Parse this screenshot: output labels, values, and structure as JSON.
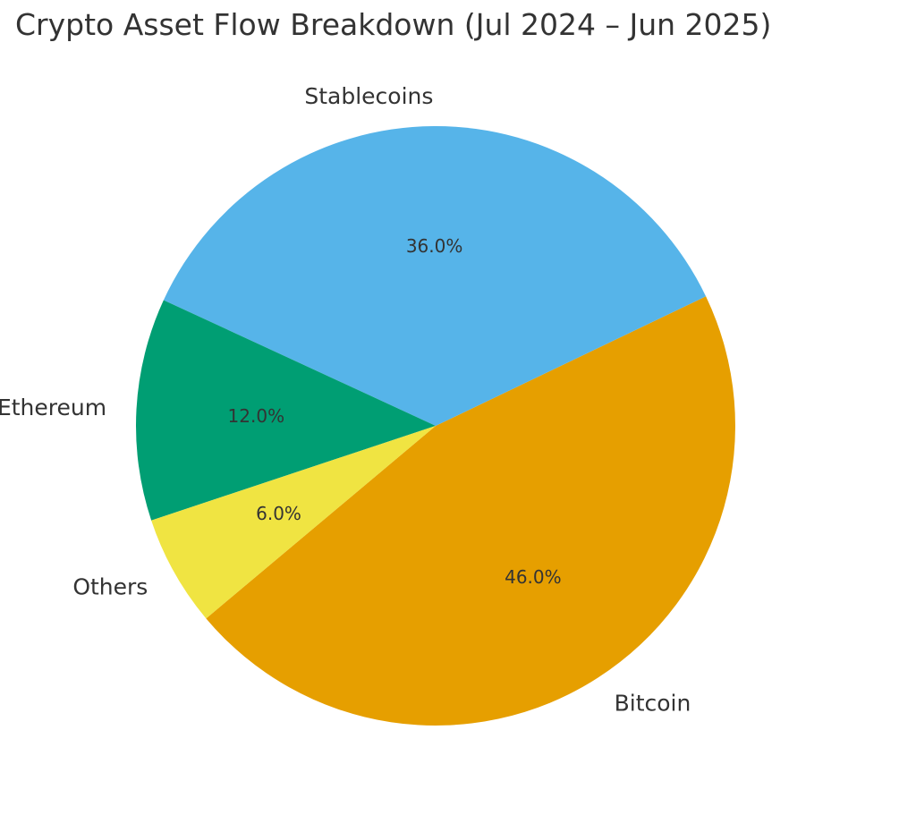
{
  "chart_data": {
    "type": "pie",
    "title": "Crypto Asset Flow Breakdown (Jul 2024 – Jun 2025)",
    "slices": [
      {
        "label": "Bitcoin",
        "value": 46.0,
        "pct_label": "46.0%",
        "color": "#E69F00"
      },
      {
        "label": "Stablecoins",
        "value": 36.0,
        "pct_label": "36.0%",
        "color": "#56B4E9"
      },
      {
        "label": "Ethereum",
        "value": 12.0,
        "pct_label": "12.0%",
        "color": "#009E73"
      },
      {
        "label": "Others",
        "value": 6.0,
        "pct_label": "6.0%",
        "color": "#F0E442"
      }
    ]
  }
}
